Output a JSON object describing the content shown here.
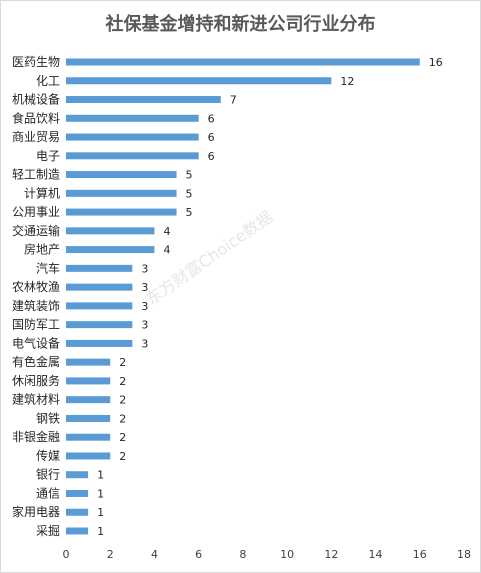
{
  "chart_data": {
    "type": "bar",
    "orientation": "horizontal",
    "title": "社保基金增持和新进公司行业分布",
    "categories": [
      "医药生物",
      "化工",
      "机械设备",
      "食品饮料",
      "商业贸易",
      "电子",
      "轻工制造",
      "计算机",
      "公用事业",
      "交通运输",
      "房地产",
      "汽车",
      "农林牧渔",
      "建筑装饰",
      "国防军工",
      "电气设备",
      "有色金属",
      "休闲服务",
      "建筑材料",
      "钢铁",
      "非银金融",
      "传媒",
      "银行",
      "通信",
      "家用电器",
      "采掘"
    ],
    "values": [
      16,
      12,
      7,
      6,
      6,
      6,
      5,
      5,
      5,
      4,
      4,
      3,
      3,
      3,
      3,
      3,
      2,
      2,
      2,
      2,
      2,
      2,
      1,
      1,
      1,
      1
    ],
    "xlim": [
      0,
      18
    ],
    "xticks": [
      0,
      2,
      4,
      6,
      8,
      10,
      12,
      14,
      16,
      18
    ],
    "grid": false,
    "legend": "none",
    "bar_color": "#5b9bd5",
    "watermark": "东方财富Choice数据"
  }
}
